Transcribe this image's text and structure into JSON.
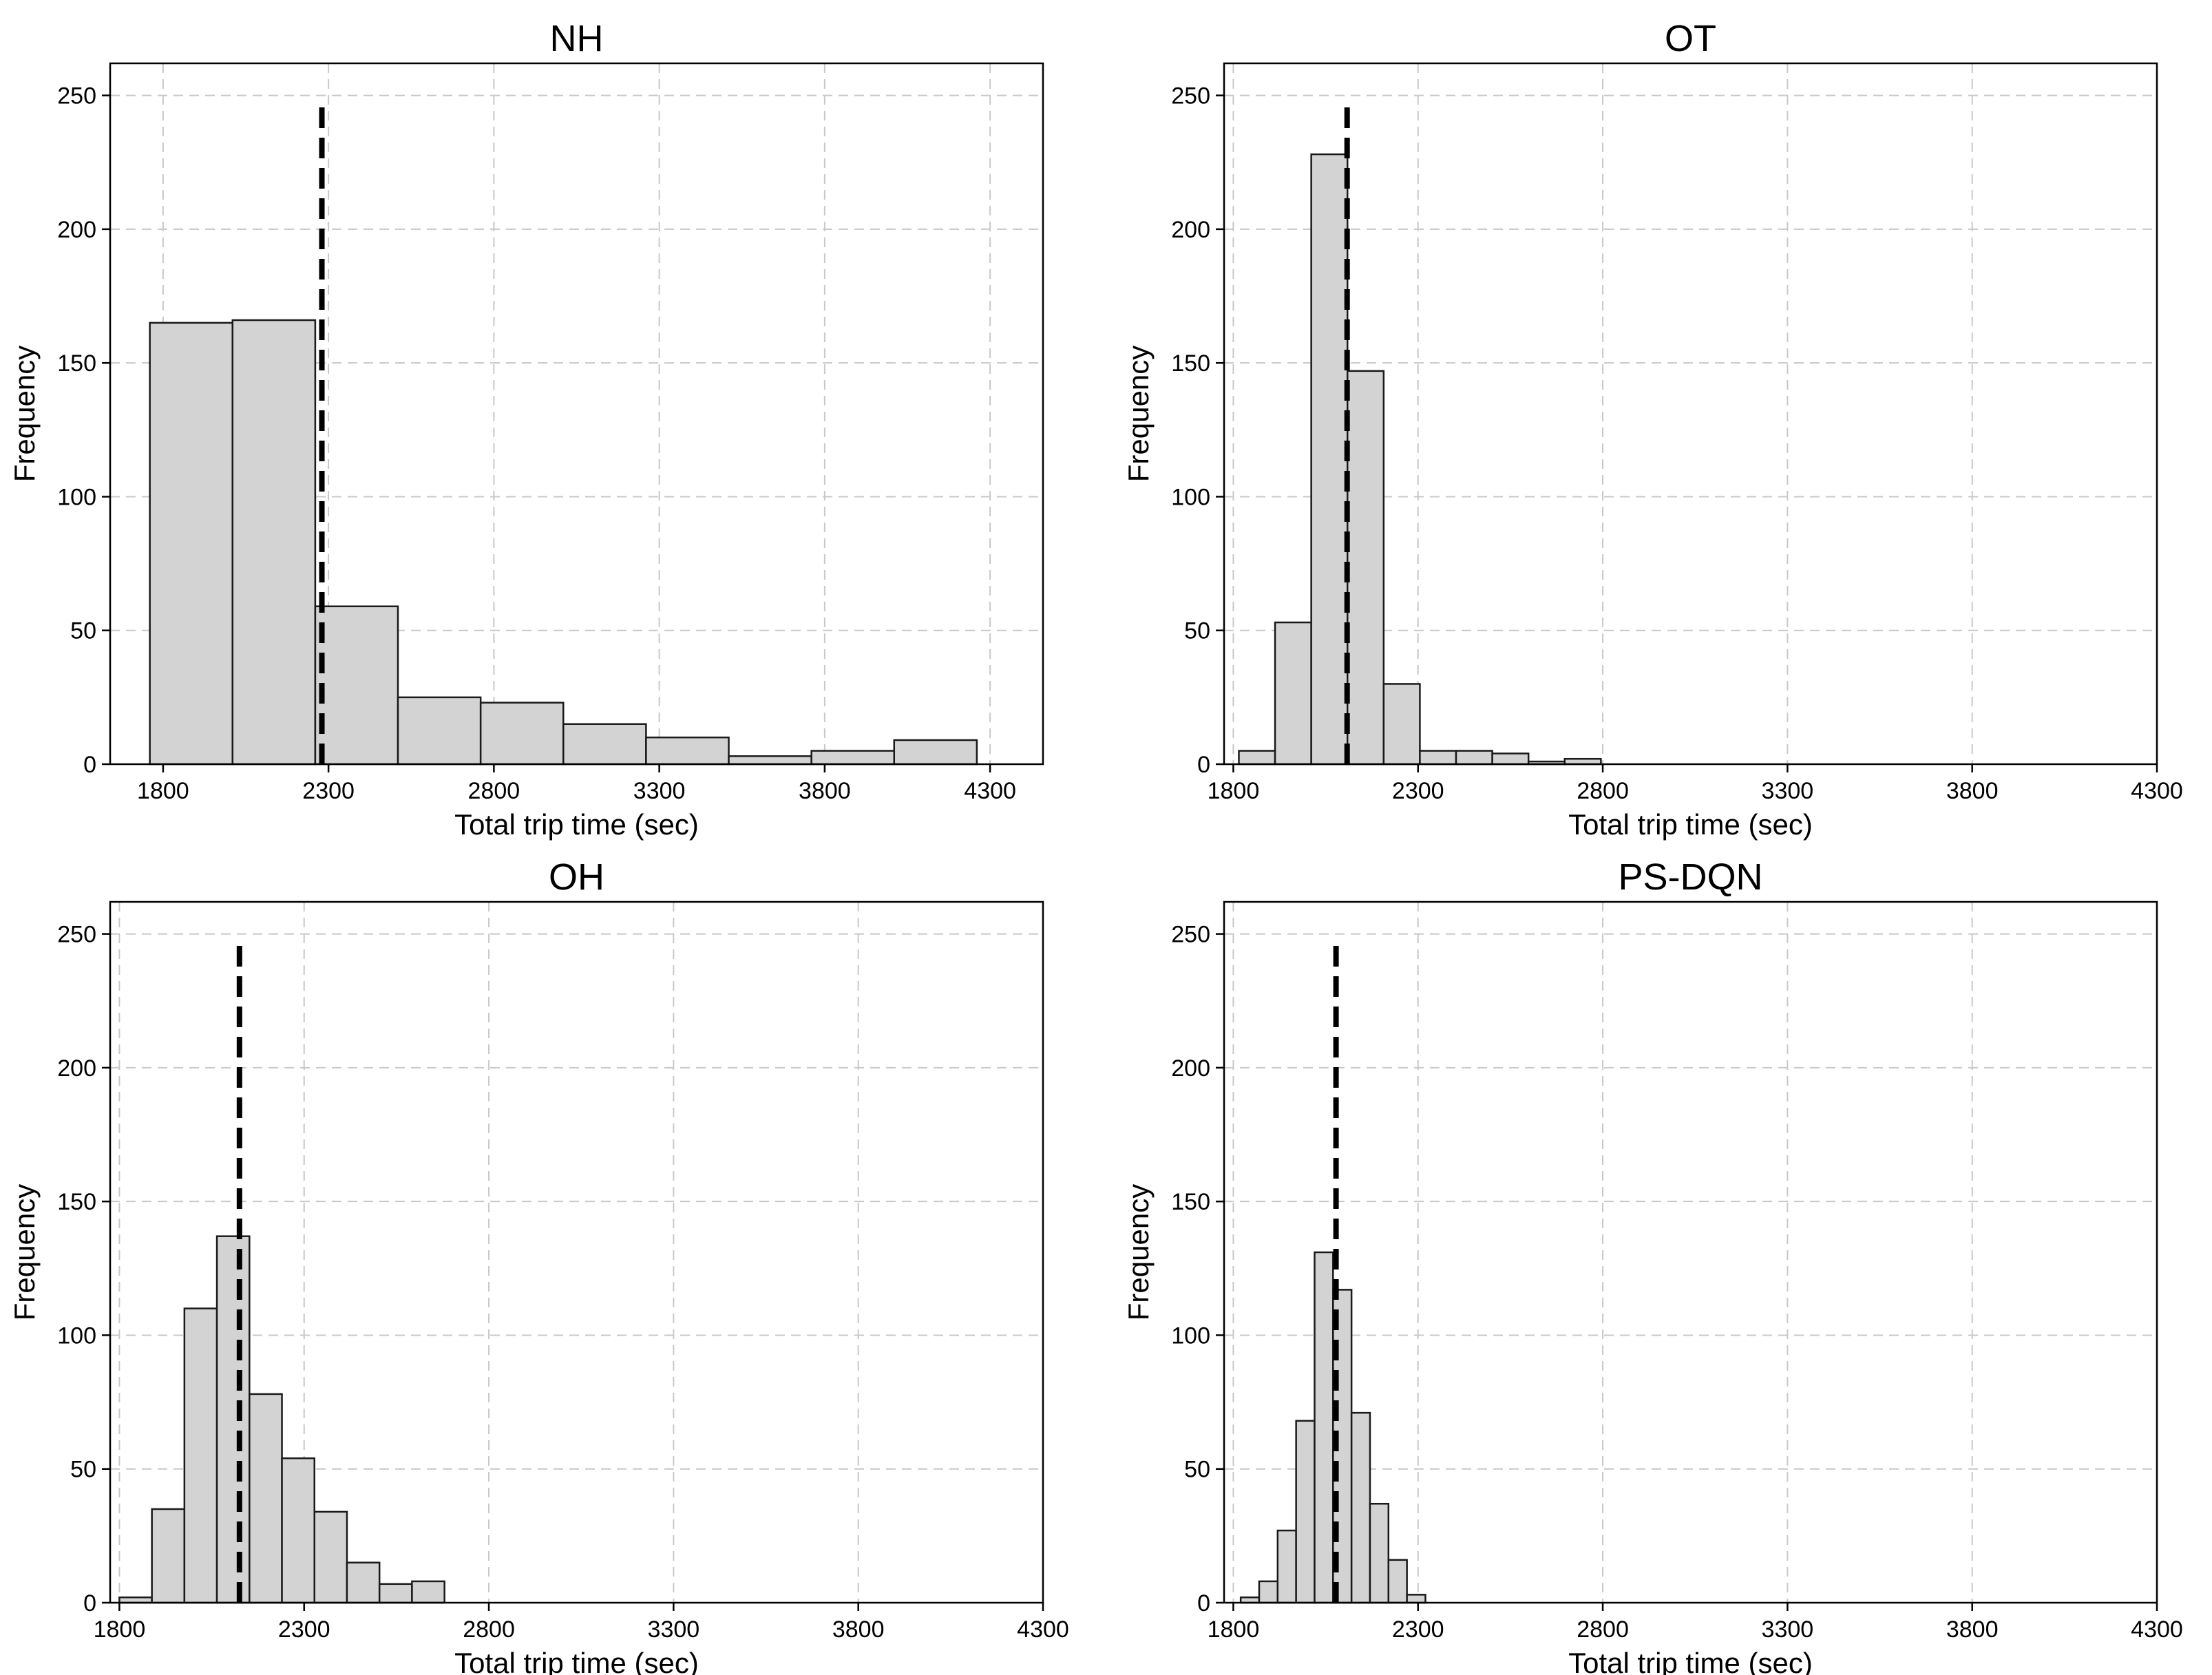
{
  "chart_data": [
    {
      "type": "bar",
      "title": "NH",
      "xlabel": "Total trip time (sec)",
      "ylabel": "Frequency",
      "xlim": [
        1640,
        4460
      ],
      "ylim": [
        0,
        262
      ],
      "xticks": [
        1800,
        2300,
        2800,
        3300,
        3800,
        4300
      ],
      "yticks": [
        0,
        50,
        100,
        150,
        200,
        250
      ],
      "bin_edges": [
        1760,
        2010,
        2260,
        2510,
        2760,
        3010,
        3260,
        3510,
        3760,
        4010,
        4260
      ],
      "values": [
        165,
        166,
        59,
        25,
        23,
        15,
        10,
        3,
        5,
        9
      ],
      "mean_line": 2280,
      "mean_line_top": 248,
      "grid": true
    },
    {
      "type": "bar",
      "title": "OT",
      "xlabel": "Total trip time (sec)",
      "ylabel": "Frequency",
      "xlim": [
        1775,
        4300
      ],
      "ylim": [
        0,
        262
      ],
      "xticks": [
        1800,
        2300,
        2800,
        3300,
        3800,
        4300
      ],
      "yticks": [
        0,
        50,
        100,
        150,
        200,
        250
      ],
      "bin_edges": [
        1815,
        1913,
        2011,
        2109,
        2207,
        2305,
        2403,
        2501,
        2599,
        2697,
        2795
      ],
      "values": [
        5,
        53,
        228,
        147,
        30,
        5,
        5,
        4,
        1,
        2
      ],
      "mean_line": 2108,
      "mean_line_top": 248,
      "grid": true
    },
    {
      "type": "bar",
      "title": "OH",
      "xlabel": "Total trip time (sec)",
      "ylabel": "Frequency",
      "xlim": [
        1775,
        4300
      ],
      "ylim": [
        0,
        262
      ],
      "xticks": [
        1800,
        2300,
        2800,
        3300,
        3800,
        4300
      ],
      "yticks": [
        0,
        50,
        100,
        150,
        200,
        250
      ],
      "bin_edges": [
        1800,
        1888,
        1976,
        2064,
        2152,
        2240,
        2328,
        2416,
        2504,
        2592,
        2680
      ],
      "values": [
        2,
        35,
        110,
        137,
        78,
        54,
        34,
        15,
        7,
        8
      ],
      "mean_line": 2125,
      "mean_line_top": 248,
      "grid": true
    },
    {
      "type": "bar",
      "title": "PS-DQN",
      "xlabel": "Total trip time (sec)",
      "ylabel": "Frequency",
      "xlim": [
        1775,
        4300
      ],
      "ylim": [
        0,
        262
      ],
      "xticks": [
        1800,
        2300,
        2800,
        3300,
        3800,
        4300
      ],
      "yticks": [
        0,
        50,
        100,
        150,
        200,
        250
      ],
      "bin_edges": [
        1820,
        1870,
        1920,
        1970,
        2020,
        2070,
        2120,
        2170,
        2220,
        2270,
        2320,
        2370
      ],
      "values": [
        2,
        8,
        27,
        68,
        131,
        117,
        71,
        37,
        16,
        3,
        0
      ],
      "mean_line": 2078,
      "mean_line_top": 248,
      "grid": true
    }
  ]
}
